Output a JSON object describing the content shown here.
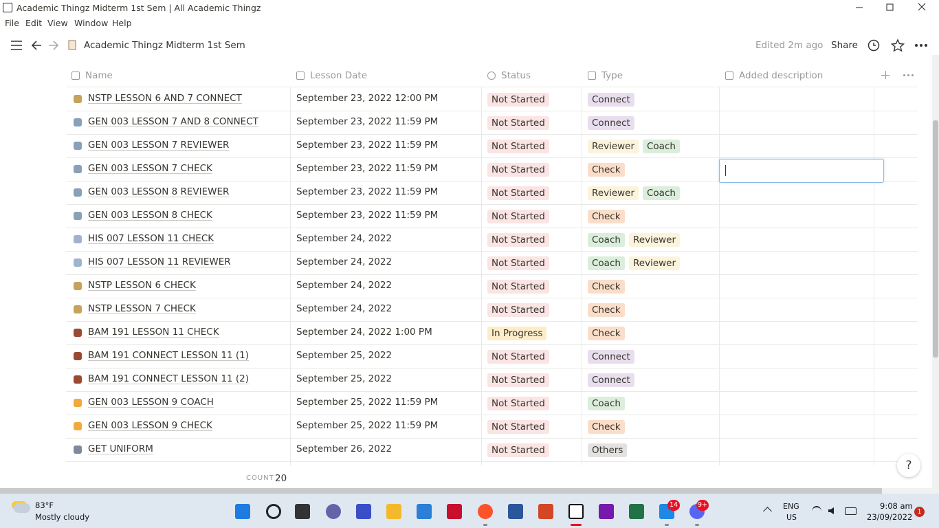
{
  "window": {
    "title": "Academic Thingz Midterm 1st Sem | All Academic Thingz",
    "menu": [
      "File",
      "Edit",
      "View",
      "Window",
      "Help"
    ]
  },
  "topbar": {
    "page_title": "Academic Thingz Midterm 1st Sem",
    "edited": "Edited 2m ago",
    "share": "Share"
  },
  "table": {
    "columns": [
      "Name",
      "Lesson Date",
      "Status",
      "Type",
      "Added description"
    ],
    "rows": [
      {
        "name": "NSTP LESSON 6 AND 7 CONNECT",
        "date": "September 23, 2022 12:00 PM",
        "status": {
          "label": "Not Started",
          "color": "#fbe4e4"
        },
        "type": [
          {
            "label": "Connect",
            "color": "#e8deee"
          }
        ]
      },
      {
        "name": "GEN 003 LESSON 7 AND 8 CONNECT",
        "date": "September 23, 2022 11:59 PM",
        "status": {
          "label": "Not Started",
          "color": "#fbe4e4"
        },
        "type": [
          {
            "label": "Connect",
            "color": "#e8deee"
          }
        ]
      },
      {
        "name": "GEN 003 LESSON 7 REVIEWER",
        "date": "September 23, 2022 11:59 PM",
        "status": {
          "label": "Not Started",
          "color": "#fbe4e4"
        },
        "type": [
          {
            "label": "Reviewer",
            "color": "#fbf3db"
          },
          {
            "label": "Coach",
            "color": "#dbeddb"
          }
        ]
      },
      {
        "name": "GEN 003 LESSON 7 CHECK",
        "date": "September 23, 2022 11:59 PM",
        "status": {
          "label": "Not Started",
          "color": "#fbe4e4"
        },
        "type": [
          {
            "label": "Check",
            "color": "#fadec9"
          }
        ]
      },
      {
        "name": "GEN 003 LESSON 8 REVIEWER",
        "date": "September 23, 2022 11:59 PM",
        "status": {
          "label": "Not Started",
          "color": "#fbe4e4"
        },
        "type": [
          {
            "label": "Reviewer",
            "color": "#fbf3db"
          },
          {
            "label": "Coach",
            "color": "#dbeddb"
          }
        ]
      },
      {
        "name": "GEN 003 LESSON 8 CHECK",
        "date": "September 23, 2022 11:59 PM",
        "status": {
          "label": "Not Started",
          "color": "#fbe4e4"
        },
        "type": [
          {
            "label": "Check",
            "color": "#fadec9"
          }
        ]
      },
      {
        "name": "HIS 007 LESSON 11 CHECK",
        "date": "September 24, 2022",
        "status": {
          "label": "Not Started",
          "color": "#fbe4e4"
        },
        "type": [
          {
            "label": "Coach",
            "color": "#dbeddb"
          },
          {
            "label": "Reviewer",
            "color": "#fbf3db"
          }
        ]
      },
      {
        "name": "HIS 007 LESSON 11 REVIEWER",
        "date": "September 24, 2022",
        "status": {
          "label": "Not Started",
          "color": "#fbe4e4"
        },
        "type": [
          {
            "label": "Coach",
            "color": "#dbeddb"
          },
          {
            "label": "Reviewer",
            "color": "#fbf3db"
          }
        ]
      },
      {
        "name": "NSTP LESSON 6 CHECK",
        "date": "September 24, 2022",
        "status": {
          "label": "Not Started",
          "color": "#fbe4e4"
        },
        "type": [
          {
            "label": "Check",
            "color": "#fadec9"
          }
        ]
      },
      {
        "name": "NSTP LESSON 7 CHECK",
        "date": "September 24, 2022",
        "status": {
          "label": "Not Started",
          "color": "#fbe4e4"
        },
        "type": [
          {
            "label": "Check",
            "color": "#fadec9"
          }
        ]
      },
      {
        "name": "BAM 191 LESSON 11 CHECK",
        "date": "September 24, 2022 1:00 PM",
        "status": {
          "label": "In Progress",
          "color": "#fdecc8"
        },
        "type": [
          {
            "label": "Check",
            "color": "#fadec9"
          }
        ]
      },
      {
        "name": "BAM 191 CONNECT LESSON 11 (1)",
        "date": "September 25, 2022",
        "status": {
          "label": "Not Started",
          "color": "#fbe4e4"
        },
        "type": [
          {
            "label": "Connect",
            "color": "#e8deee"
          }
        ]
      },
      {
        "name": "BAM 191 CONNECT LESSON 11 (2)",
        "date": "September 25, 2022",
        "status": {
          "label": "Not Started",
          "color": "#fbe4e4"
        },
        "type": [
          {
            "label": "Connect",
            "color": "#e8deee"
          }
        ]
      },
      {
        "name": "GEN 003 LESSON 9 COACH",
        "date": "September 25, 2022 11:59 PM",
        "status": {
          "label": "Not Started",
          "color": "#fbe4e4"
        },
        "type": [
          {
            "label": "Coach",
            "color": "#dbeddb"
          }
        ]
      },
      {
        "name": "GEN 003 LESSON 9 CHECK",
        "date": "September 25, 2022 11:59 PM",
        "status": {
          "label": "Not Started",
          "color": "#fbe4e4"
        },
        "type": [
          {
            "label": "Check",
            "color": "#fadec9"
          }
        ]
      },
      {
        "name": "GET UNIFORM",
        "date": "September 26, 2022",
        "status": {
          "label": "Not Started",
          "color": "#fbe4e4"
        },
        "type": [
          {
            "label": "Others",
            "color": "#e3e2e0"
          }
        ]
      }
    ],
    "count_label": "COUNT",
    "count": 20
  },
  "help": "?",
  "taskbar": {
    "weather_temp": "83°F",
    "weather_desc": "Mostly cloudy",
    "badges": [
      14,
      "9+"
    ],
    "lang": "ENG",
    "region": "US",
    "time": "9:08 am",
    "date": "23/09/2022",
    "notifications": 1
  }
}
